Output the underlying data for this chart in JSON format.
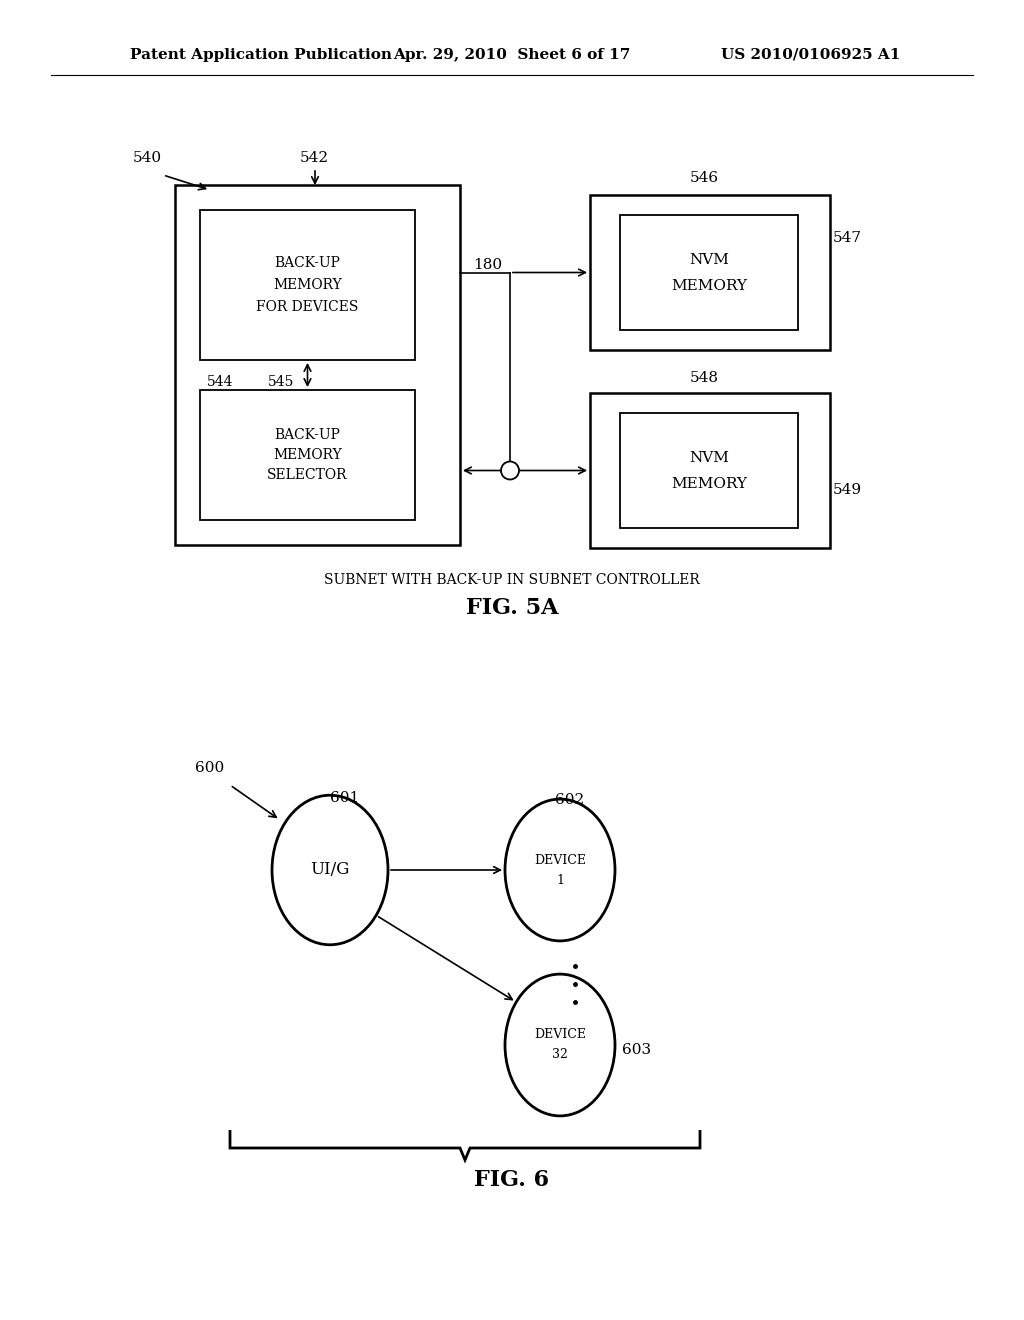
{
  "bg_color": "#ffffff",
  "header_left": "Patent Application Publication",
  "header_mid": "Apr. 29, 2010  Sheet 6 of 17",
  "header_right": "US 2010/0106925 A1",
  "page_width": 10.24,
  "page_height": 13.2,
  "fig5a": {
    "caption": "SUBNET WITH BACK-UP IN SUBNET CONTROLLER",
    "fig_label": "FIG. 5A",
    "label_540": "540",
    "label_542": "542",
    "label_544": "544",
    "label_545": "545",
    "label_546": "546",
    "label_547": "547",
    "label_548": "548",
    "label_549": "549",
    "label_180": "180"
  },
  "fig6": {
    "fig_label": "FIG. 6",
    "label_600": "600",
    "label_601": "601",
    "label_602": "602",
    "label_603": "603",
    "text_uig": "UI/G",
    "text_device1": [
      "DEVICE",
      "1"
    ],
    "text_device32": [
      "DEVICE",
      "32"
    ]
  }
}
